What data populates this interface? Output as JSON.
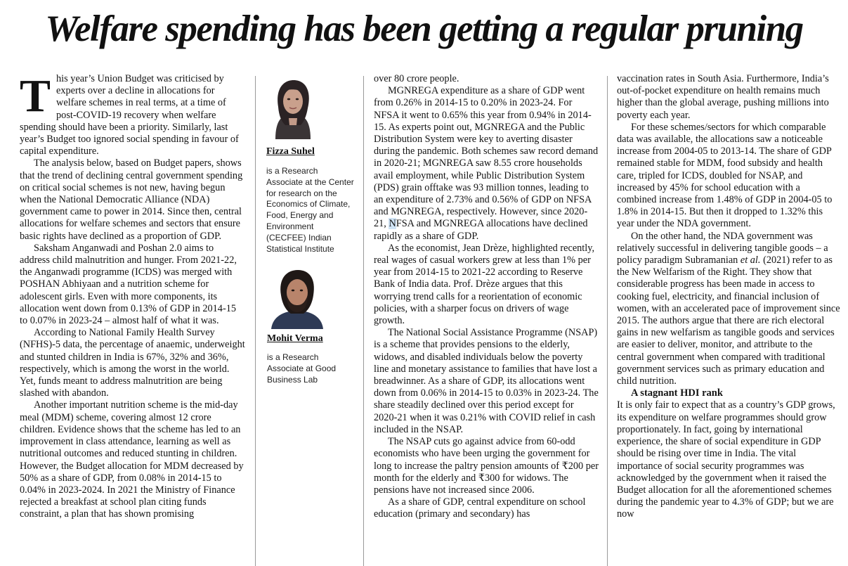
{
  "headline": "Welfare spending has been getting a regular pruning",
  "col1": {
    "dropcap": "T",
    "p1": "his year’s Union Budget was criticised by experts over a decline in allocations for welfare schemes in real terms, at a time of post-COVID-19 recovery when welfare spending should have been a priority. Similarly, last year’s Budget too ignored social spending in favour of capital expenditure.",
    "p2": "The analysis below, based on Budget papers, shows that the trend of declining central government spending on critical social schemes is not new, having begun when the National Democratic Alliance (NDA) government came to power in 2014. Since then, central allocations for welfare schemes and sectors that ensure basic rights have declined as a proportion of GDP.",
    "p3": "Saksham Anganwadi and Poshan 2.0 aims to address child malnutrition and hunger. From 2021-22, the Anganwadi programme (ICDS) was merged with POSHAN Abhiyaan and a nutrition scheme for adolescent girls. Even with more components, its allocation went down from 0.13% of GDP in 2014-15 to 0.07% in 2023-24 – almost half of what it was.",
    "p4": "According to National Family Health Survey (NFHS)-5 data, the percentage of anaemic, underweight and stunted children in India is 67%, 32% and 36%, respectively, which is among the worst in the world. Yet, funds meant to address malnutrition are being slashed with abandon.",
    "p5": "Another important nutrition scheme is the mid-day meal (MDM) scheme, covering almost 12 crore children. Evidence shows that the scheme has led to an improvement in class attendance, learning as well as nutritional outcomes and reduced stunting in children. However, the Budget allocation for MDM decreased by 50% as a share of GDP, from 0.08% in 2014-15 to 0.04% in 2023-2024. In 2021 the Ministry of Finance rejected a breakfast at school plan citing funds constraint, a plan that has shown promising"
  },
  "authors": [
    {
      "name": "Fizza Suhel",
      "bio": "is a Research Associate at the Center for research on the Economics of Climate, Food, Energy and Environment (CECFEE) Indian Statistical Institute"
    },
    {
      "name": "Mohit Verma",
      "bio": "is a Research Associate at Good Business Lab"
    }
  ],
  "col3": {
    "p0": "over 80 crore people.",
    "p1": "MGNREGA expenditure as a share of GDP went from 0.26% in 2014-15 to 0.20% in 2023-24. For NFSA it went to 0.65% this year from 0.94% in 2014-15. As experts point out, MGNREGA and the Public Distribution System were key to averting disaster during the pandemic. Both schemes saw record demand in 2020-21; MGNREGA saw 8.55 crore households avail employment, while Public Distribution System (PDS) grain offtake was 93 million tonnes, leading to an expenditure of 2.73% and 0.56% of GDP on NFSA and MGNREGA, respectively. However, since 2020-21,",
    "p1_hl": "N",
    "p1_tail": "FSA and MGNREGA allocations have declined rapidly as a share of GDP.",
    "p2": "As the economist, Jean Drèze, highlighted recently, real wages of casual workers grew at less than 1% per year from 2014-15 to 2021-22 according to Reserve Bank of India data. Prof. Drèze argues that this worrying trend calls for a reorientation of economic policies, with a sharper focus on drivers of wage growth.",
    "p3": "The National Social Assistance Programme (NSAP) is a scheme that provides pensions to the elderly, widows, and disabled individuals below the poverty line and monetary assistance to families that have lost a breadwinner. As a share of GDP, its allocations went down from 0.06% in 2014-15 to 0.03% in 2023-24. The share steadily declined over this period except for 2020-21 when it was 0.21% with COVID relief in cash included in the NSAP.",
    "p4": "The NSAP cuts go against advice from 60-odd economists who have been urging the government for long to increase the paltry pension amounts of ₹200 per month for the elderly and ₹300 for widows. The pensions have not increased since 2006.",
    "p5": "As a share of GDP, central expenditure on school education (primary and secondary) has"
  },
  "col4": {
    "p0": "vaccination rates in South Asia. Furthermore, India’s out-of-pocket expenditure on health remains much higher than the global average, pushing millions into poverty each year.",
    "p1": "For these schemes/sectors for which comparable data was available, the allocations saw a noticeable increase from 2004-05 to 2013-14. The share of GDP remained stable for MDM, food subsidy and health care, tripled for ICDS, doubled for NSAP, and increased by 45% for school education with a combined increase from 1.48% of GDP in 2004-05 to 1.8% in 2014-15. But then it dropped to 1.32% this year under the NDA government.",
    "p2a": "On the other hand, the NDA government was relatively successful in delivering tangible goods – a policy paradigm Subramanian",
    "p2_em": "et al.",
    "p2b": "(2021) refer to as the New Welfarism of the Right. They show that considerable progress has been made in access to cooking fuel, electricity, and financial inclusion of women, with an accelerated pace of improvement since 2015. The authors argue that there are rich electoral gains in new welfarism as tangible goods and services are easier to deliver, monitor, and attribute to the central government when compared with traditional government services such as primary education and child nutrition.",
    "subhead": "A stagnant HDI rank",
    "p3": "It is only fair to expect that as a country’s GDP grows, its expenditure on welfare programmes should grow proportionately. In fact, going by international experience, the share of social expenditure in GDP should be rising over time in India. The vital importance of social security programmes was acknowledged by the government when it raised the Budget allocation for all the aforementioned schemes during the pandemic year to 4.3% of GDP; but we are now"
  }
}
